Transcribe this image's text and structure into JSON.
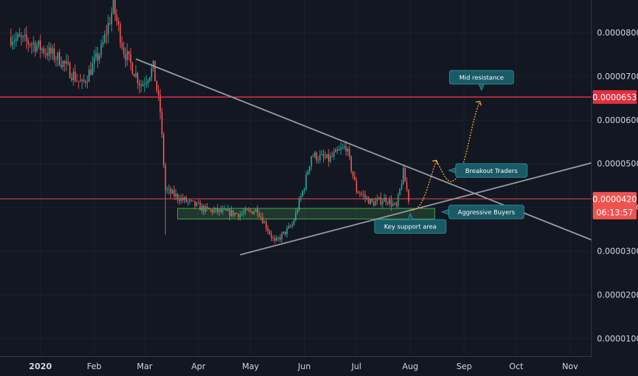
{
  "chart_data": {
    "type": "candlestick",
    "x_axis": {
      "ticks": [
        "2020",
        "Feb",
        "Mar",
        "Apr",
        "May",
        "Jun",
        "Jul",
        "Aug",
        "Sep",
        "Oct",
        "Nov"
      ],
      "tick_dates": [
        "2020-01-01",
        "2020-02-01",
        "2020-03-01",
        "2020-04-01",
        "2020-05-01",
        "2020-06-01",
        "2020-07-01",
        "2020-08-01",
        "2020-09-01",
        "2020-10-01",
        "2020-11-01"
      ],
      "range": [
        "2019-12-10",
        "2020-11-16"
      ]
    },
    "y_axis": {
      "ticks": [
        "0.0000100",
        "0.0000200",
        "0.0000300",
        "0.0000400",
        "0.0000500",
        "0.0000600",
        "0.0000700",
        "0.0000800"
      ],
      "tick_values": [
        1e-05,
        2e-05,
        3e-05,
        4e-05,
        5e-05,
        6e-05,
        7e-05,
        8e-05
      ],
      "range": [
        6e-06,
        8.75e-05
      ]
    },
    "price_lines": [
      {
        "label": "0.0000653",
        "value": 6.53e-05,
        "color": "#e02f3f"
      },
      {
        "label": "0.0000420",
        "value": 4.2e-05,
        "color": "#ef5350"
      }
    ],
    "countdown": "06:13:57",
    "candle_colors": {
      "up": "#26a69a",
      "down": "#ef5350"
    },
    "key_points": [
      {
        "date": "2019-12-15",
        "close": 7.9e-05
      },
      {
        "date": "2019-12-28",
        "close": 7.75e-05
      },
      {
        "date": "2020-01-12",
        "close": 7.4e-05
      },
      {
        "date": "2020-01-25",
        "close": 6.8e-05
      },
      {
        "date": "2020-02-05",
        "close": 7.6e-05
      },
      {
        "date": "2020-02-12",
        "close": 8.6e-05
      },
      {
        "date": "2020-02-18",
        "close": 7.6e-05
      },
      {
        "date": "2020-02-28",
        "close": 6.8e-05
      },
      {
        "date": "2020-03-06",
        "close": 7.2e-05
      },
      {
        "date": "2020-03-10",
        "close": 6.2e-05
      },
      {
        "date": "2020-03-13",
        "close": 4.4e-05
      },
      {
        "date": "2020-03-22",
        "close": 4.2e-05
      },
      {
        "date": "2020-04-05",
        "close": 3.95e-05
      },
      {
        "date": "2020-04-25",
        "close": 3.85e-05
      },
      {
        "date": "2020-05-05",
        "close": 3.95e-05
      },
      {
        "date": "2020-05-15",
        "close": 3.2e-05
      },
      {
        "date": "2020-05-25",
        "close": 3.6e-05
      },
      {
        "date": "2020-06-01",
        "close": 4.5e-05
      },
      {
        "date": "2020-06-05",
        "close": 5.2e-05
      },
      {
        "date": "2020-06-15",
        "close": 5.1e-05
      },
      {
        "date": "2020-06-25",
        "close": 5.4e-05
      },
      {
        "date": "2020-07-01",
        "close": 4.4e-05
      },
      {
        "date": "2020-07-10",
        "close": 4.1e-05
      },
      {
        "date": "2020-07-18",
        "close": 4.2e-05
      },
      {
        "date": "2020-07-24",
        "close": 4e-05
      },
      {
        "date": "2020-07-28",
        "close": 4.8e-05
      },
      {
        "date": "2020-07-31",
        "close": 4.2e-05
      }
    ],
    "support_zone": {
      "from": "2020-03-20",
      "to": "2020-08-15",
      "low": 3.74e-05,
      "high": 3.98e-05,
      "color": "#4caf50"
    },
    "trendlines": [
      {
        "name": "descending",
        "from": {
          "date": "2020-02-25",
          "value": 7.4e-05
        },
        "to": {
          "date": "2020-11-16",
          "value": 3.22e-05
        },
        "color": "#9598a1"
      },
      {
        "name": "ascending",
        "from": {
          "date": "2020-04-25",
          "value": 2.92e-05
        },
        "to": {
          "date": "2020-11-16",
          "value": 5.05e-05
        },
        "color": "#9598a1"
      }
    ],
    "projection": {
      "color": "#f0a830",
      "points": [
        {
          "date": "2020-08-01",
          "value": 3.95e-05
        },
        {
          "date": "2020-08-16",
          "value": 5.08e-05
        },
        {
          "date": "2020-08-25",
          "value": 4.6e-05
        },
        {
          "date": "2020-09-10",
          "value": 6.43e-05
        }
      ]
    },
    "annotations": [
      {
        "text": "Mid resistance",
        "anchor": {
          "date": "2020-09-11",
          "value": 6.7e-05
        },
        "pointer": "down"
      },
      {
        "text": "Breakout Traders",
        "anchor": {
          "date": "2020-08-24",
          "value": 4.85e-05
        },
        "pointer": "left"
      },
      {
        "text": "Aggressive Buyers",
        "anchor": {
          "date": "2020-08-20",
          "value": 3.9e-05
        },
        "pointer": "left"
      },
      {
        "text": "Key support area",
        "anchor": {
          "date": "2020-08-01",
          "value": 3.85e-05
        },
        "pointer": "up"
      }
    ]
  }
}
